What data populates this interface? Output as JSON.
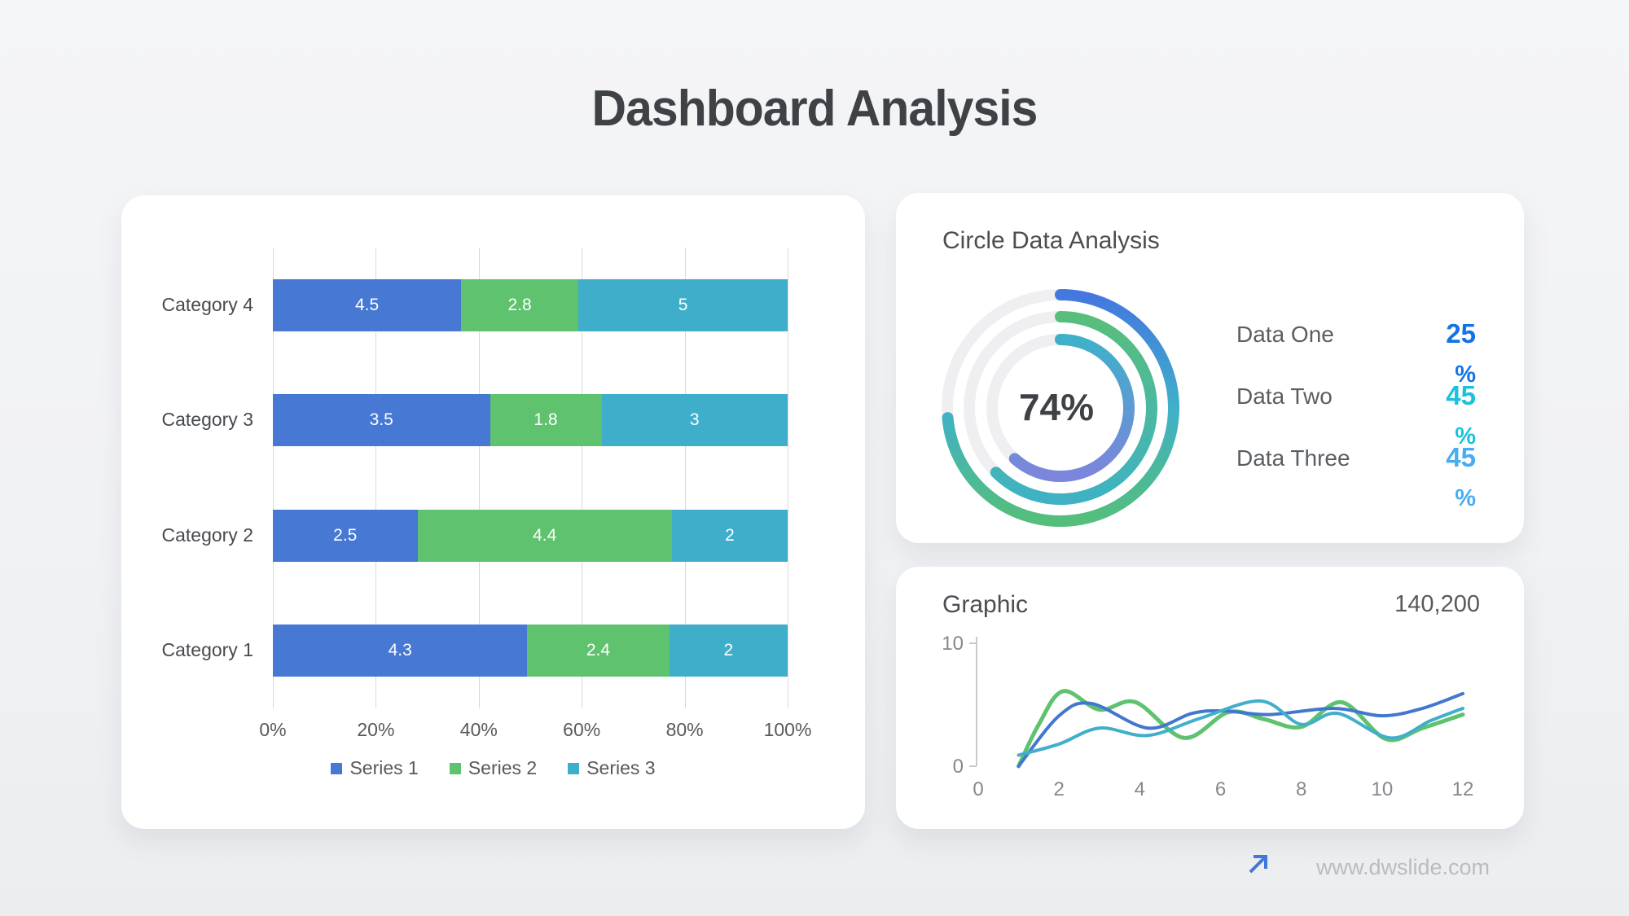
{
  "title": "Dashboard Analysis",
  "footer": {
    "url": "www.dwslide.com"
  },
  "colors": {
    "series1_blue": "#4678d4",
    "series2_green": "#5fc26f",
    "series3_teal": "#3faeca",
    "gridline": "#d9d9d9",
    "axis_text": "#595959",
    "chart_axis_line": "#c9cbce",
    "chart_axis_text": "#85888c",
    "donut_track": "#efeff2",
    "value_one_blue": "#1273e6",
    "value_two_cyan": "#18c2dc",
    "value_three_lightblue": "#45aef2",
    "footer_arrow_blue": "#4377d9"
  },
  "bar_panel": {
    "x_ticks": [
      "0%",
      "20%",
      "40%",
      "60%",
      "80%",
      "100%"
    ],
    "legend": [
      "Series 1",
      "Series 2",
      "Series 3"
    ]
  },
  "donut_panel": {
    "title": "Circle Data Analysis",
    "center_label": "74%",
    "items": [
      {
        "label": "Data One",
        "value": "25",
        "unit": "%",
        "color": "#1273e6"
      },
      {
        "label": "Data Two",
        "value": "45",
        "unit": "%",
        "color": "#18c2dc"
      },
      {
        "label": "Data Three",
        "value": "45",
        "unit": "%",
        "color": "#45aef2"
      }
    ]
  },
  "graphic_panel": {
    "title": "Graphic",
    "stat": "140,200"
  },
  "chart_data": [
    {
      "type": "bar",
      "subtype": "horizontal-100%-stacked",
      "title": "",
      "categories": [
        "Category 4",
        "Category 3",
        "Category 2",
        "Category 1"
      ],
      "series": [
        {
          "name": "Series 1",
          "color": "#4678d4",
          "values": [
            4.5,
            3.5,
            2.5,
            4.3
          ]
        },
        {
          "name": "Series 2",
          "color": "#5fc26f",
          "values": [
            2.8,
            1.8,
            4.4,
            2.4
          ]
        },
        {
          "name": "Series 3",
          "color": "#3faeca",
          "values": [
            5,
            3,
            2,
            2
          ]
        }
      ],
      "xlabel": "",
      "ylabel": "",
      "x_ticks": [
        "0%",
        "20%",
        "40%",
        "60%",
        "80%",
        "100%"
      ],
      "xlim": [
        0,
        100
      ],
      "grid": true,
      "legend_position": "bottom",
      "data_labels": [
        "4.5",
        "2.8",
        "5",
        "3.5",
        "1.8",
        "3",
        "2.5",
        "4.4",
        "2",
        "4.3",
        "2.4",
        "2"
      ]
    },
    {
      "type": "pie",
      "subtype": "concentric-progress-rings",
      "title": "Circle Data Analysis",
      "center_label": "74%",
      "labels": [
        "Data One",
        "Data Two",
        "Data Three"
      ],
      "values": [
        25,
        45,
        45
      ],
      "rings": [
        {
          "radius": 139,
          "sweep_deg": 265,
          "stops": [
            "#4477e0",
            "#3fb0c9",
            "#55be7b"
          ]
        },
        {
          "radius": 112,
          "sweep_deg": 225,
          "stops": [
            "#58be7c",
            "#3eb2c4"
          ]
        },
        {
          "radius": 84,
          "sweep_deg": 222,
          "stops": [
            "#3fb0c9",
            "#7c85dc"
          ]
        }
      ],
      "track_color": "#efeff2",
      "stroke_width": 14
    },
    {
      "type": "line",
      "title": "Graphic",
      "xlabel": "",
      "ylabel": "",
      "xlim": [
        0,
        12
      ],
      "ylim": [
        0,
        10
      ],
      "x_ticks": [
        0,
        2,
        4,
        6,
        8,
        10,
        12
      ],
      "y_ticks": [
        0,
        10
      ],
      "grid": false,
      "series": [
        {
          "name": "green",
          "color": "#5fc26f",
          "width": 5,
          "points": [
            [
              1,
              0
            ],
            [
              1.5,
              3.4
            ],
            [
              2.1,
              6.1
            ],
            [
              3,
              4.6
            ],
            [
              3.9,
              5.2
            ],
            [
              5.1,
              2.3
            ],
            [
              6.2,
              4.4
            ],
            [
              7.1,
              3.8
            ],
            [
              8,
              3.2
            ],
            [
              9,
              5.2
            ],
            [
              10.1,
              2.2
            ],
            [
              11,
              3.1
            ],
            [
              12,
              4.2
            ]
          ]
        },
        {
          "name": "blue",
          "color": "#4277ce",
          "width": 4,
          "points": [
            [
              1,
              0
            ],
            [
              2,
              4.1
            ],
            [
              2.8,
              5.1
            ],
            [
              4.2,
              3.1
            ],
            [
              5.3,
              4.3
            ],
            [
              6.1,
              4.5
            ],
            [
              7.2,
              4.2
            ],
            [
              8.8,
              4.7
            ],
            [
              10,
              4.1
            ],
            [
              11,
              4.7
            ],
            [
              12,
              5.9
            ]
          ]
        },
        {
          "name": "teal",
          "color": "#41aecb",
          "width": 4,
          "points": [
            [
              1,
              0.9
            ],
            [
              2,
              1.8
            ],
            [
              3,
              3.1
            ],
            [
              4.2,
              2.5
            ],
            [
              5.5,
              3.9
            ],
            [
              7,
              5.3
            ],
            [
              8,
              3.4
            ],
            [
              8.9,
              4.3
            ],
            [
              10.2,
              2.3
            ],
            [
              11.2,
              3.7
            ],
            [
              12,
              4.7
            ]
          ]
        }
      ]
    }
  ]
}
